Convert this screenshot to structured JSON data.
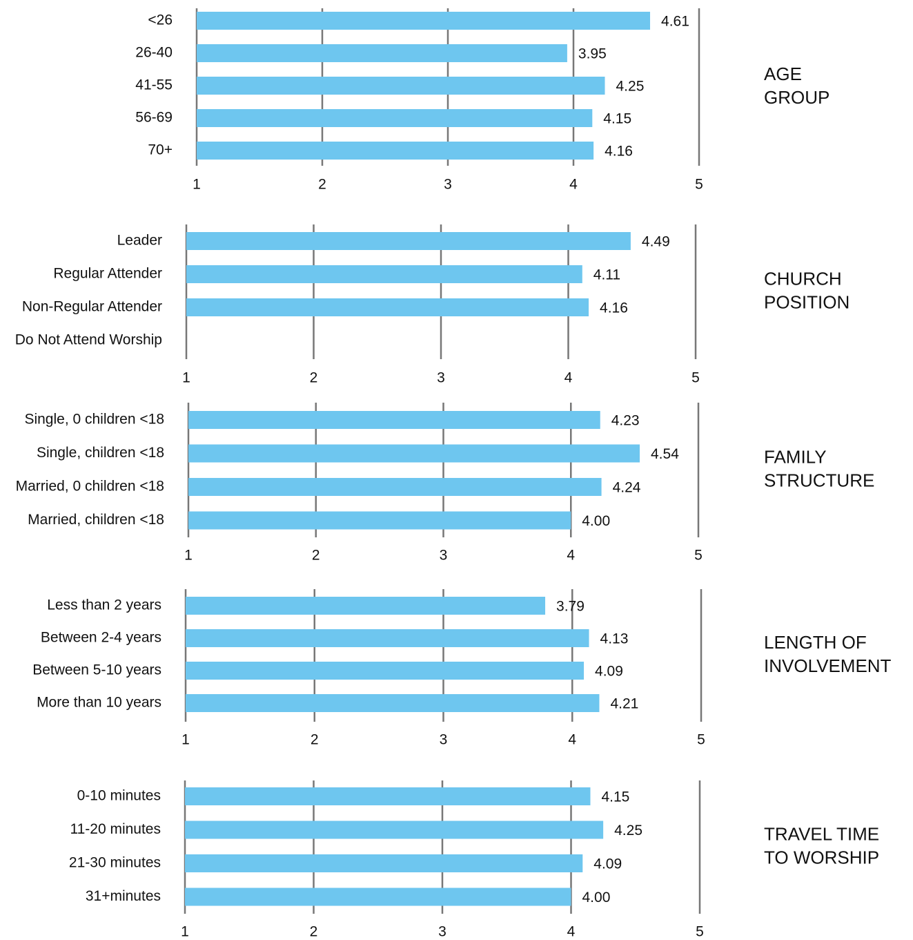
{
  "chart_data": [
    {
      "type": "hbar",
      "title_lines": [
        "AGE",
        "GROUP"
      ],
      "categories": [
        "<26",
        "26-40",
        "41-55",
        "56-69",
        "70+"
      ],
      "values": [
        4.61,
        3.95,
        4.25,
        4.15,
        4.16
      ],
      "value_labels": [
        "4.61",
        "3.95",
        "4.25",
        "4.15",
        "4.16"
      ],
      "color": "#6ec6ef",
      "xlim": [
        1,
        5
      ],
      "xticks": [
        1,
        2,
        3,
        4,
        5
      ],
      "grid": true
    },
    {
      "type": "hbar",
      "title_lines": [
        "CHURCH",
        "POSITION"
      ],
      "categories": [
        "Leader",
        "Regular Attender",
        "Non-Regular Attender",
        "Do Not Attend Worship"
      ],
      "values": [
        4.49,
        4.11,
        4.16,
        null
      ],
      "value_labels": [
        "4.49",
        "4.11",
        "4.16",
        null
      ],
      "color": "#6ec6ef",
      "xlim": [
        1,
        5
      ],
      "xticks": [
        1,
        2,
        3,
        4,
        5
      ],
      "grid": true
    },
    {
      "type": "hbar",
      "title_lines": [
        "FAMILY",
        "STRUCTURE"
      ],
      "categories": [
        "Single, 0 children <18",
        "Single, children <18",
        "Married, 0 children <18",
        "Married, children <18"
      ],
      "values": [
        4.23,
        4.54,
        4.24,
        4.0
      ],
      "value_labels": [
        "4.23",
        "4.54",
        "4.24",
        "4.00"
      ],
      "color": "#6ec6ef",
      "xlim": [
        1,
        5
      ],
      "xticks": [
        1,
        2,
        3,
        4,
        5
      ],
      "grid": true
    },
    {
      "type": "hbar",
      "title_lines": [
        "LENGTH OF",
        "INVOLVEMENT"
      ],
      "categories": [
        "Less than 2 years",
        "Between 2-4 years",
        "Between 5-10 years",
        "More than 10 years"
      ],
      "values": [
        3.79,
        4.13,
        4.09,
        4.21
      ],
      "value_labels": [
        "3.79",
        "4.13",
        "4.09",
        "4.21"
      ],
      "color": "#6ec6ef",
      "xlim": [
        1,
        5
      ],
      "xticks": [
        1,
        2,
        3,
        4,
        5
      ],
      "grid": true
    },
    {
      "type": "hbar",
      "title_lines": [
        "TRAVEL TIME",
        "TO WORSHIP"
      ],
      "categories": [
        "0-10 minutes",
        "11-20 minutes",
        "21-30 minutes",
        "31+minutes"
      ],
      "values": [
        4.15,
        4.25,
        4.09,
        4.0
      ],
      "value_labels": [
        "4.15",
        "4.25",
        "4.09",
        "4.00"
      ],
      "color": "#6ec6ef",
      "xlim": [
        1,
        5
      ],
      "xticks": [
        1,
        2,
        3,
        4,
        5
      ],
      "grid": true
    }
  ]
}
